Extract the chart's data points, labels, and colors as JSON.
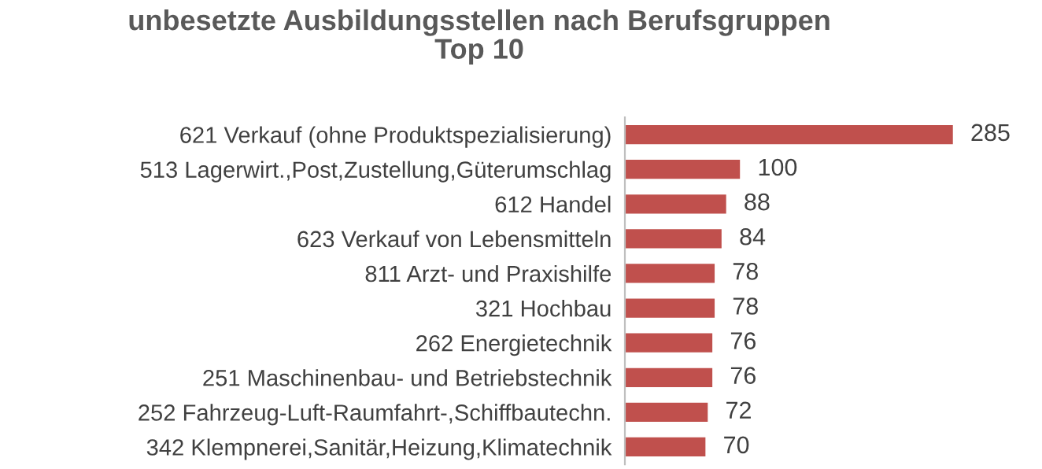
{
  "chart_data": {
    "type": "bar",
    "orientation": "horizontal",
    "title": "unbesetzte Ausbildungsstellen nach Berufsgruppen\nTop 10",
    "categories": [
      "621 Verkauf (ohne Produktspezialisierung)",
      "513 Lagerwirt.,Post,Zustellung,Güterumschlag",
      "612 Handel",
      "623 Verkauf von Lebensmitteln",
      "811 Arzt- und Praxishilfe",
      "321 Hochbau",
      "262 Energietechnik",
      "251 Maschinenbau- und Betriebstechnik",
      "252 Fahrzeug-Luft-Raumfahrt-,Schiffbautechn.",
      "342 Klempnerei,Sanitär,Heizung,Klimatechnik"
    ],
    "values": [
      285,
      100,
      88,
      84,
      78,
      78,
      76,
      76,
      72,
      70
    ],
    "color": "#c0504d",
    "data_labels": true
  }
}
